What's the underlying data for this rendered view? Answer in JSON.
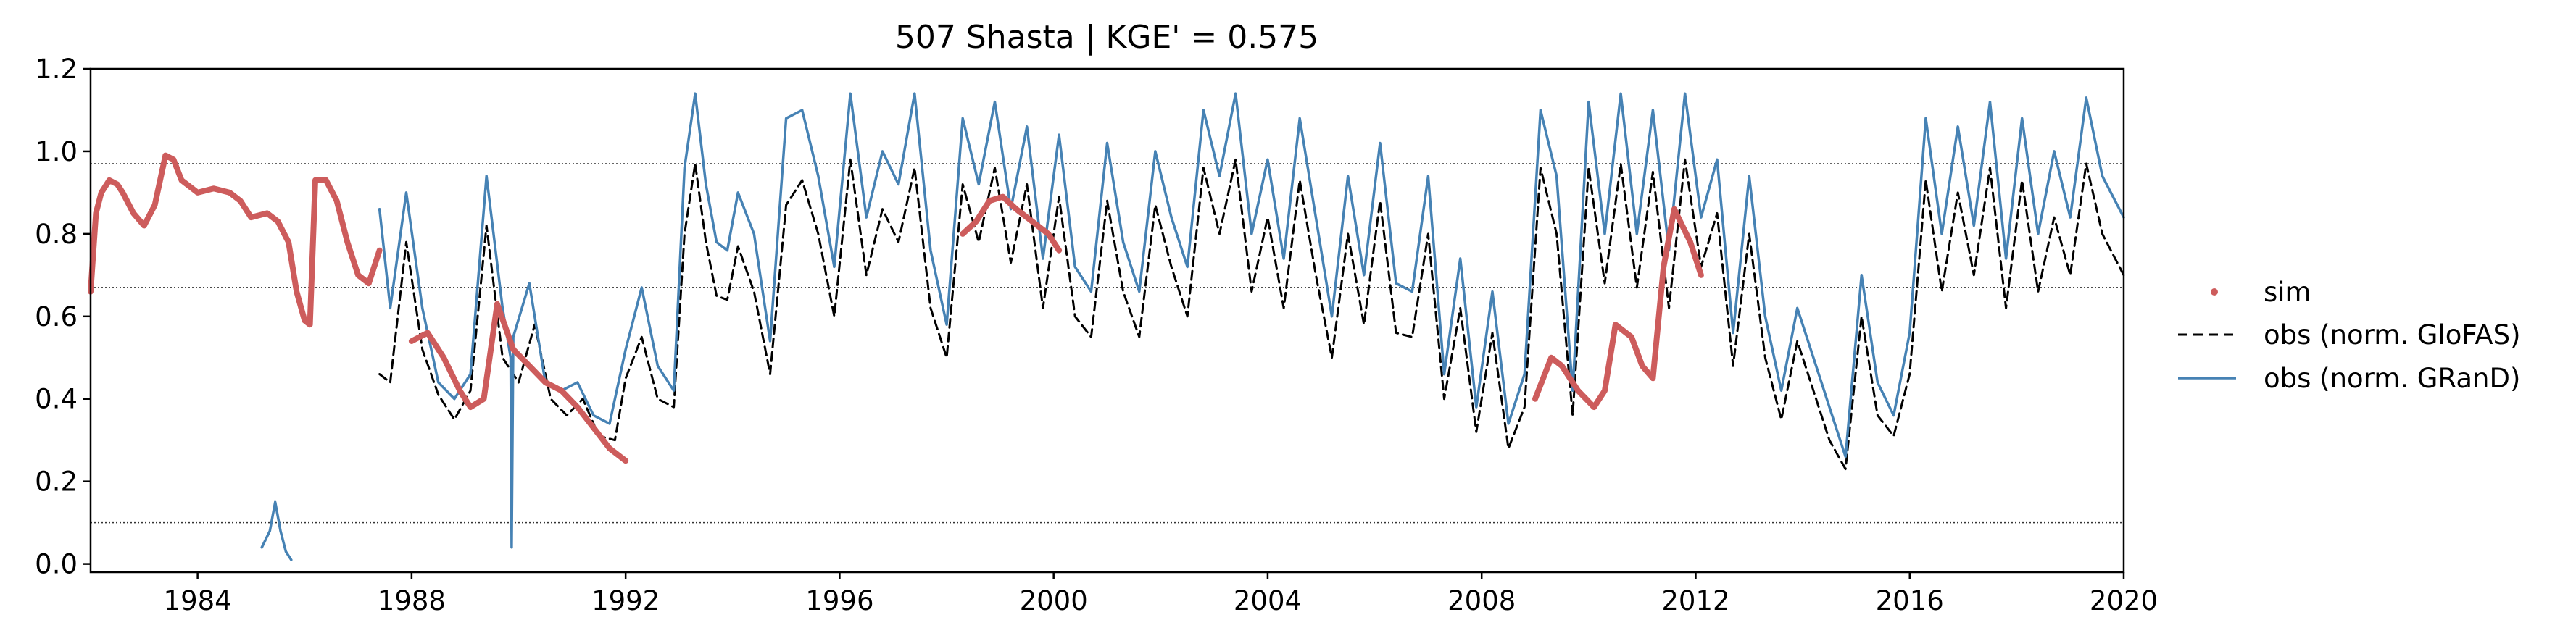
{
  "chart_data": {
    "type": "line",
    "title": "507  Shasta | KGE' = 0.575",
    "xlim": [
      1982.0,
      2020.0
    ],
    "ylim": [
      -0.02,
      1.2
    ],
    "x_ticks": [
      1984,
      1988,
      1992,
      1996,
      2000,
      2004,
      2008,
      2012,
      2016,
      2020
    ],
    "x_tick_labels": [
      "1984",
      "1988",
      "1992",
      "1996",
      "2000",
      "2004",
      "2008",
      "2012",
      "2016",
      "2020"
    ],
    "y_ticks": [
      0.0,
      0.2,
      0.4,
      0.6,
      0.8,
      1.0,
      1.2
    ],
    "y_tick_labels": [
      "0.0",
      "0.2",
      "0.4",
      "0.6",
      "0.8",
      "1.0",
      "1.2"
    ],
    "reference_lines": [
      0.97,
      0.67,
      0.1
    ],
    "legend_position": "right",
    "colors": {
      "sim": "#cd5c5c",
      "glofas": "#000000",
      "grand": "#4682b4"
    },
    "series": [
      {
        "name": "sim",
        "style": "points",
        "segments": [
          {
            "x": [
              1982.0,
              1982.1,
              1982.2,
              1982.35,
              1982.5,
              1982.6,
              1982.8,
              1983.0,
              1983.2,
              1983.4,
              1983.55,
              1983.7,
              1983.9,
              1984.0,
              1984.3,
              1984.6,
              1984.8,
              1985.0,
              1985.3,
              1985.5,
              1985.7,
              1985.85,
              1986.0,
              1986.1,
              1986.2,
              1986.4,
              1986.6,
              1986.8,
              1987.0,
              1987.2,
              1987.4
            ],
            "y": [
              0.66,
              0.85,
              0.9,
              0.93,
              0.92,
              0.9,
              0.85,
              0.82,
              0.87,
              0.99,
              0.98,
              0.93,
              0.91,
              0.9,
              0.91,
              0.9,
              0.88,
              0.84,
              0.85,
              0.83,
              0.78,
              0.66,
              0.59,
              0.58,
              0.93,
              0.93,
              0.88,
              0.78,
              0.7,
              0.68,
              0.76
            ]
          },
          {
            "x": [
              1988.0,
              1988.3,
              1988.6,
              1988.9,
              1989.1,
              1989.35,
              1989.6,
              1989.9,
              1990.2,
              1990.5,
              1990.8,
              1991.1,
              1991.4,
              1991.7,
              1992.0
            ],
            "y": [
              0.54,
              0.56,
              0.5,
              0.42,
              0.38,
              0.4,
              0.63,
              0.52,
              0.48,
              0.44,
              0.42,
              0.38,
              0.33,
              0.28,
              0.25
            ]
          },
          {
            "x": [
              1998.3,
              1998.55,
              1998.8,
              1999.05,
              1999.3,
              1999.6,
              1999.9,
              2000.1
            ],
            "y": [
              0.8,
              0.83,
              0.88,
              0.89,
              0.86,
              0.83,
              0.8,
              0.76
            ]
          },
          {
            "x": [
              2009.0,
              2009.3,
              2009.5,
              2009.8,
              2010.1,
              2010.3,
              2010.5,
              2010.8,
              2011.0,
              2011.2,
              2011.4,
              2011.6,
              2011.9,
              2012.1
            ],
            "y": [
              0.4,
              0.5,
              0.48,
              0.42,
              0.38,
              0.42,
              0.58,
              0.55,
              0.48,
              0.45,
              0.72,
              0.86,
              0.78,
              0.7
            ]
          }
        ]
      },
      {
        "name": "obs (norm. GloFAS)",
        "style": "dashed",
        "segments": [
          {
            "x": [
              1987.4,
              1987.6,
              1987.9,
              1988.2,
              1988.5,
              1988.8,
              1989.1,
              1989.4,
              1989.7,
              1990.0,
              1990.3,
              1990.6,
              1990.9,
              1991.2,
              1991.5,
              1991.8,
              1992.0,
              1992.3,
              1992.6,
              1992.9,
              1993.1,
              1993.3,
              1993.5,
              1993.7,
              1993.9,
              1994.1,
              1994.4,
              1994.7,
              1995.0,
              1995.3,
              1995.6,
              1995.9,
              1996.2,
              1996.5,
              1996.8,
              1997.1,
              1997.4,
              1997.7,
              1998.0,
              1998.3,
              1998.6,
              1998.9,
              1999.2,
              1999.5,
              1999.8,
              2000.1,
              2000.4,
              2000.7,
              2001.0,
              2001.3,
              2001.6,
              2001.9,
              2002.2,
              2002.5,
              2002.8,
              2003.1,
              2003.4,
              2003.7,
              2004.0,
              2004.3,
              2004.6,
              2004.9,
              2005.2,
              2005.5,
              2005.8,
              2006.1,
              2006.4,
              2006.7,
              2007.0,
              2007.3,
              2007.6,
              2007.9,
              2008.2,
              2008.5,
              2008.8,
              2009.1,
              2009.4,
              2009.7,
              2010.0,
              2010.3,
              2010.6,
              2010.9,
              2011.2,
              2011.5,
              2011.8,
              2012.1,
              2012.4,
              2012.7,
              2013.0,
              2013.3,
              2013.6,
              2013.9,
              2014.2,
              2014.5,
              2014.8,
              2015.1,
              2015.4,
              2015.7,
              2016.0,
              2016.3,
              2016.6,
              2016.9,
              2017.2,
              2017.5,
              2017.8,
              2018.1,
              2018.4,
              2018.7,
              2019.0,
              2019.3,
              2019.6,
              2020.0
            ],
            "y": [
              0.46,
              0.44,
              0.78,
              0.52,
              0.41,
              0.35,
              0.42,
              0.82,
              0.5,
              0.44,
              0.58,
              0.4,
              0.36,
              0.4,
              0.31,
              0.3,
              0.45,
              0.55,
              0.4,
              0.38,
              0.8,
              0.97,
              0.78,
              0.65,
              0.64,
              0.77,
              0.66,
              0.46,
              0.87,
              0.93,
              0.8,
              0.6,
              0.98,
              0.7,
              0.86,
              0.78,
              0.96,
              0.62,
              0.5,
              0.92,
              0.78,
              0.96,
              0.73,
              0.92,
              0.62,
              0.89,
              0.6,
              0.55,
              0.88,
              0.66,
              0.55,
              0.87,
              0.72,
              0.6,
              0.96,
              0.8,
              0.98,
              0.66,
              0.84,
              0.62,
              0.93,
              0.7,
              0.5,
              0.8,
              0.58,
              0.88,
              0.56,
              0.55,
              0.8,
              0.4,
              0.62,
              0.32,
              0.56,
              0.28,
              0.38,
              0.96,
              0.8,
              0.36,
              0.96,
              0.68,
              0.97,
              0.67,
              0.95,
              0.62,
              0.98,
              0.72,
              0.85,
              0.48,
              0.8,
              0.5,
              0.35,
              0.54,
              0.42,
              0.3,
              0.23,
              0.6,
              0.36,
              0.31,
              0.46,
              0.93,
              0.66,
              0.9,
              0.7,
              0.96,
              0.62,
              0.93,
              0.66,
              0.84,
              0.7,
              0.97,
              0.8,
              0.7
            ]
          }
        ]
      },
      {
        "name": "obs (norm. GRanD)",
        "style": "solid",
        "segments": [
          {
            "x": [
              1985.2,
              1985.35,
              1985.45,
              1985.55,
              1985.65,
              1985.75
            ],
            "y": [
              0.04,
              0.08,
              0.15,
              0.08,
              0.03,
              0.01
            ]
          },
          {
            "x": [
              1987.4,
              1987.6,
              1987.9,
              1988.2,
              1988.5,
              1988.8,
              1989.1,
              1989.4,
              1989.7,
              1989.85,
              1989.87,
              1989.9,
              1990.2,
              1990.5,
              1990.8,
              1991.1,
              1991.4,
              1991.7,
              1992.0,
              1992.3,
              1992.6,
              1992.9,
              1993.1,
              1993.3,
              1993.5,
              1993.7,
              1993.9,
              1994.1,
              1994.4,
              1994.7,
              1995.0,
              1995.3,
              1995.6,
              1995.9,
              1996.2,
              1996.5,
              1996.8,
              1997.1,
              1997.4,
              1997.7,
              1998.0,
              1998.3,
              1998.6,
              1998.9,
              1999.2,
              1999.5,
              1999.8,
              2000.1,
              2000.4,
              2000.7,
              2001.0,
              2001.3,
              2001.6,
              2001.9,
              2002.2,
              2002.5,
              2002.8,
              2003.1,
              2003.4,
              2003.7,
              2004.0,
              2004.3,
              2004.6,
              2004.9,
              2005.2,
              2005.5,
              2005.8,
              2006.1,
              2006.4,
              2006.7,
              2007.0,
              2007.3,
              2007.6,
              2007.9,
              2008.2,
              2008.5,
              2008.8,
              2009.1,
              2009.4,
              2009.7,
              2010.0,
              2010.3,
              2010.6,
              2010.9,
              2011.2,
              2011.5,
              2011.8,
              2012.1,
              2012.4,
              2012.7,
              2013.0,
              2013.3,
              2013.6,
              2013.9,
              2014.2,
              2014.5,
              2014.8,
              2015.1,
              2015.4,
              2015.7,
              2016.0,
              2016.3,
              2016.6,
              2016.9,
              2017.2,
              2017.5,
              2017.8,
              2018.1,
              2018.4,
              2018.7,
              2019.0,
              2019.3,
              2019.6,
              2020.0
            ],
            "y": [
              0.86,
              0.62,
              0.9,
              0.62,
              0.44,
              0.4,
              0.46,
              0.94,
              0.62,
              0.5,
              0.04,
              0.55,
              0.68,
              0.44,
              0.42,
              0.44,
              0.36,
              0.34,
              0.52,
              0.67,
              0.48,
              0.42,
              0.96,
              1.14,
              0.92,
              0.78,
              0.76,
              0.9,
              0.8,
              0.54,
              1.08,
              1.1,
              0.94,
              0.72,
              1.14,
              0.84,
              1.0,
              0.92,
              1.14,
              0.76,
              0.58,
              1.08,
              0.92,
              1.12,
              0.86,
              1.06,
              0.74,
              1.04,
              0.72,
              0.66,
              1.02,
              0.78,
              0.66,
              1.0,
              0.84,
              0.72,
              1.1,
              0.94,
              1.14,
              0.8,
              0.98,
              0.74,
              1.08,
              0.84,
              0.6,
              0.94,
              0.7,
              1.02,
              0.68,
              0.66,
              0.94,
              0.46,
              0.74,
              0.38,
              0.66,
              0.34,
              0.46,
              1.1,
              0.94,
              0.42,
              1.12,
              0.8,
              1.14,
              0.8,
              1.1,
              0.76,
              1.14,
              0.84,
              0.98,
              0.56,
              0.94,
              0.6,
              0.42,
              0.62,
              0.5,
              0.38,
              0.26,
              0.7,
              0.44,
              0.36,
              0.56,
              1.08,
              0.8,
              1.06,
              0.82,
              1.12,
              0.74,
              1.08,
              0.8,
              1.0,
              0.84,
              1.13,
              0.94,
              0.84
            ]
          }
        ]
      }
    ]
  }
}
